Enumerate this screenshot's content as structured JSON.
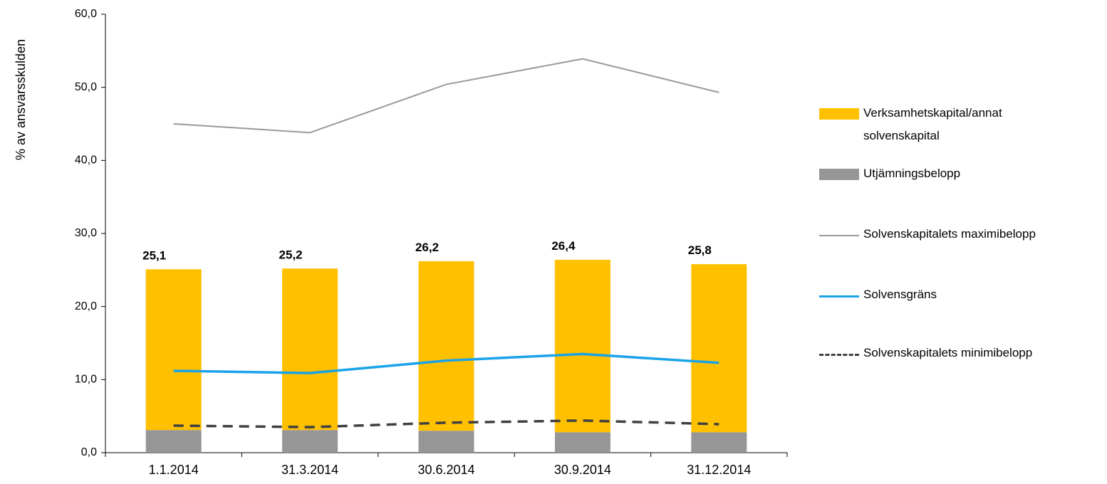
{
  "chart_data": {
    "type": "bar",
    "y_label": "% av ansvarsskulden",
    "categories": [
      "1.1.2014",
      "31.3.2014",
      "30.6.2014",
      "30.9.2014",
      "31.12.2014"
    ],
    "series": [
      {
        "name": "Verksamhetskapital/annat solvenskapital",
        "type": "bar",
        "color": "#FFC000",
        "values": [
          22.0,
          22.1,
          23.2,
          23.6,
          23.0
        ]
      },
      {
        "name": "Utjämningsbelopp",
        "type": "bar",
        "color": "#969696",
        "values": [
          3.1,
          3.1,
          3.0,
          2.8,
          2.8
        ]
      },
      {
        "name": "Solvenskapitalets maximibelopp",
        "type": "line",
        "color": "#9a9a9a",
        "width": 2,
        "values": [
          45.0,
          43.8,
          50.4,
          53.9,
          49.3
        ]
      },
      {
        "name": "Solvensgräns",
        "type": "line",
        "color": "#1AA3E8",
        "width": 3.5,
        "values": [
          11.2,
          10.9,
          12.6,
          13.5,
          12.3
        ]
      },
      {
        "name": "Solvenskapitalets minimibelopp",
        "type": "line",
        "color": "#404040",
        "width": 3.5,
        "dashed": true,
        "values": [
          3.7,
          3.5,
          4.1,
          4.4,
          3.9
        ]
      }
    ],
    "totals": [
      25.1,
      25.2,
      26.2,
      26.4,
      25.8
    ],
    "total_labels": [
      "25,1",
      "25,2",
      "26,2",
      "26,4",
      "25,8"
    ],
    "ylim": [
      0,
      60
    ],
    "yticks": [
      {
        "value": 0,
        "label": "0,0"
      },
      {
        "value": 10,
        "label": "10,0"
      },
      {
        "value": 20,
        "label": "20,0"
      },
      {
        "value": 30,
        "label": "30,0"
      },
      {
        "value": 40,
        "label": "40,0"
      },
      {
        "value": 50,
        "label": "50,0"
      },
      {
        "value": 60,
        "label": "60,0"
      }
    ],
    "legend": "right"
  }
}
